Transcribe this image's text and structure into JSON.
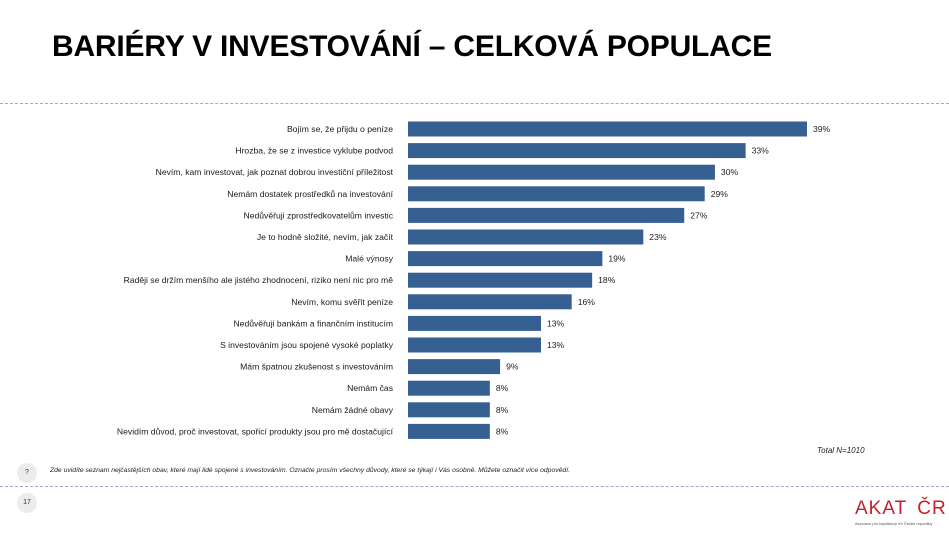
{
  "slide": {
    "title": "BARIÉRY V INVESTOVÁNÍ – CELKOVÁ POPULACE",
    "total_note": "Total N=1010",
    "question_marker": "?",
    "question_text": "Zde uvidíte seznam nejčastějších obav, které mají lidé spojené s investováním. Označte prosím všechny důvody, které se týkají i Vás osobně.  Můžete označit více odpovědí.",
    "page_number": "17"
  },
  "logo": {
    "left": "AKAT",
    "right": "ČR",
    "tagline": "Asociace pro kapitálový trh České republiky"
  },
  "chart_data": {
    "type": "bar",
    "orientation": "horizontal",
    "categories": [
      "Bojím se, že přijdu o peníze",
      "Hrozba, že se z investice vyklube podvod",
      "Nevím, kam investovat, jak poznat dobrou investiční příležitost",
      "Nemám dostatek prostředků na investování",
      "Nedůvěřuji zprostředkovatelům investic",
      "Je to hodně složité, nevím, jak začít",
      "Malé výnosy",
      "Raději se držím menšího ale jistého zhodnocení, riziko není nic pro mě",
      "Nevím, komu svěřit peníze",
      "Nedůvěřuji bankám a finančním institucím",
      "S investováním jsou spojené vysoké poplatky",
      "Mám špatnou zkušenost s  investováním",
      "Nemám čas",
      "Nemám žádné obavy",
      "Nevidím důvod, proč investovat, spořicí produkty jsou pro mě dostačující"
    ],
    "values": [
      39,
      33,
      30,
      29,
      27,
      23,
      19,
      18,
      16,
      13,
      13,
      9,
      8,
      8,
      8
    ],
    "value_suffix": "%",
    "xlim": [
      0,
      39
    ],
    "bar_color": "#376092",
    "grid": false,
    "legend": "none"
  }
}
